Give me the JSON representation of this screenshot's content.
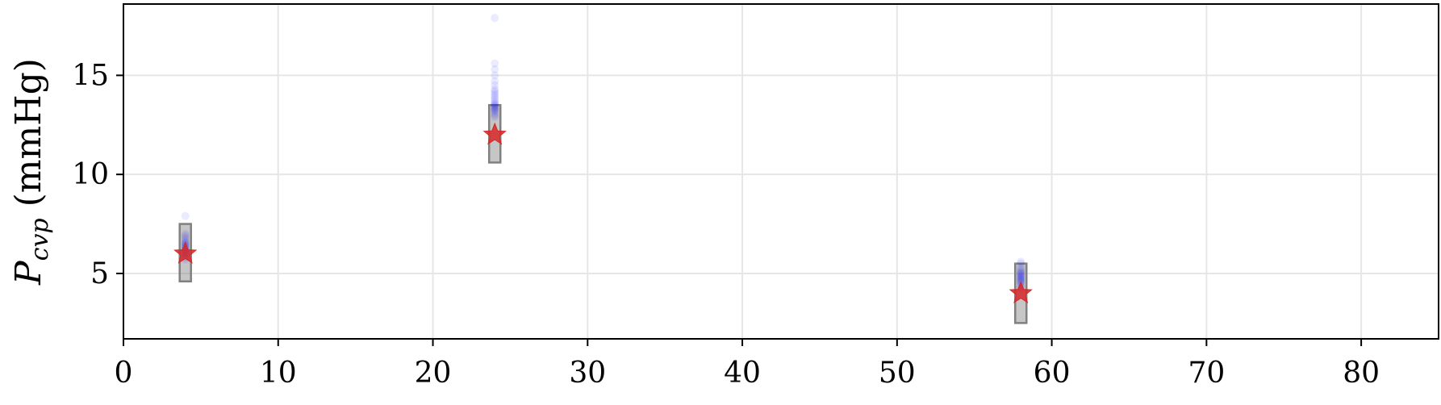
{
  "chart_data": {
    "type": "scatter",
    "title": "",
    "xlabel": "",
    "ylabel": {
      "symbol": "P",
      "subscript": "cvp",
      "unit": "(mmHg)"
    },
    "xlim": [
      0,
      85
    ],
    "ylim": [
      1.7,
      18.6
    ],
    "xticks": [
      0,
      10,
      20,
      30,
      40,
      50,
      60,
      70,
      80
    ],
    "yticks": [
      5,
      10,
      15
    ],
    "grid": true,
    "series": [
      {
        "kind": "samples",
        "color": "#0000ff",
        "marker": "circle",
        "alpha": 0.08,
        "groups": [
          {
            "x": 4,
            "y": [
              5.7,
              5.8,
              5.9,
              6.0,
              6.05,
              6.1,
              6.15,
              6.2,
              6.25,
              6.3,
              6.35,
              6.4,
              6.45,
              6.5,
              6.55,
              6.6,
              6.7,
              6.8,
              6.9,
              7.0,
              7.9
            ]
          },
          {
            "x": 24,
            "y": [
              12.9,
              13.0,
              13.1,
              13.2,
              13.25,
              13.3,
              13.35,
              13.4,
              13.45,
              13.5,
              13.55,
              13.6,
              13.7,
              13.8,
              13.9,
              14.0,
              14.1,
              14.2,
              14.3,
              14.5,
              14.7,
              15.0,
              15.3,
              15.6,
              17.9
            ]
          },
          {
            "x": 58,
            "y": [
              4.2,
              4.3,
              4.4,
              4.5,
              4.55,
              4.6,
              4.65,
              4.7,
              4.75,
              4.8,
              4.85,
              4.9,
              4.95,
              5.0,
              5.05,
              5.1,
              5.2,
              5.3,
              5.5,
              5.6
            ]
          }
        ]
      },
      {
        "kind": "error_box",
        "color": "#808080",
        "points": [
          {
            "x": 4,
            "ylow": 4.6,
            "yhigh": 7.5
          },
          {
            "x": 24,
            "ylow": 10.6,
            "yhigh": 13.5
          },
          {
            "x": 58,
            "ylow": 2.5,
            "yhigh": 5.5
          }
        ]
      },
      {
        "kind": "observed",
        "color": "#d62728",
        "marker": "star",
        "points": [
          {
            "x": 4,
            "y": 6.0
          },
          {
            "x": 24,
            "y": 12.0
          },
          {
            "x": 58,
            "y": 4.0
          }
        ]
      }
    ]
  }
}
